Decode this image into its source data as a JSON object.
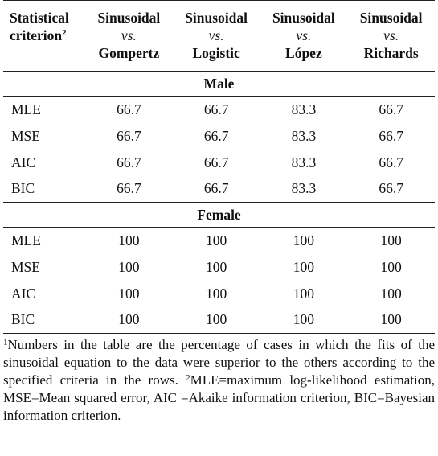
{
  "header": {
    "first": {
      "lines": [
        "Statistical",
        "criterion"
      ],
      "sup": "2"
    },
    "columns": [
      {
        "model": "Sinusoidal",
        "vs": "vs.",
        "against": "Gompertz"
      },
      {
        "model": "Sinusoidal",
        "vs": "vs.",
        "against": "Logistic"
      },
      {
        "model": "Sinusoidal",
        "vs": "vs.",
        "against": "López"
      },
      {
        "model": "Sinusoidal",
        "vs": "vs.",
        "against": "Richards"
      }
    ]
  },
  "sections": [
    {
      "title": "Male",
      "rows": [
        {
          "label": "MLE",
          "values": [
            66.7,
            66.7,
            83.3,
            66.7
          ]
        },
        {
          "label": "MSE",
          "values": [
            66.7,
            66.7,
            83.3,
            66.7
          ]
        },
        {
          "label": "AIC",
          "values": [
            66.7,
            66.7,
            83.3,
            66.7
          ]
        },
        {
          "label": "BIC",
          "values": [
            66.7,
            66.7,
            83.3,
            66.7
          ]
        }
      ]
    },
    {
      "title": "Female",
      "rows": [
        {
          "label": "MLE",
          "values": [
            100,
            100,
            100,
            100
          ]
        },
        {
          "label": "MSE",
          "values": [
            100,
            100,
            100,
            100
          ]
        },
        {
          "label": "AIC",
          "values": [
            100,
            100,
            100,
            100
          ]
        },
        {
          "label": "BIC",
          "values": [
            100,
            100,
            100,
            100
          ]
        }
      ]
    }
  ],
  "footnotes": [
    {
      "mark": "1",
      "text": "Numbers in the table are the percentage of cases in which the fits of the sinusoidal equation to the data were superior to the others according to the specified criteria in the rows. "
    },
    {
      "mark": "2",
      "text": "MLE=maximum log-likelihood estimation, MSE=Mean squared error, AIC =Akaike information criterion, BIC=Bayesian information criterion."
    }
  ]
}
